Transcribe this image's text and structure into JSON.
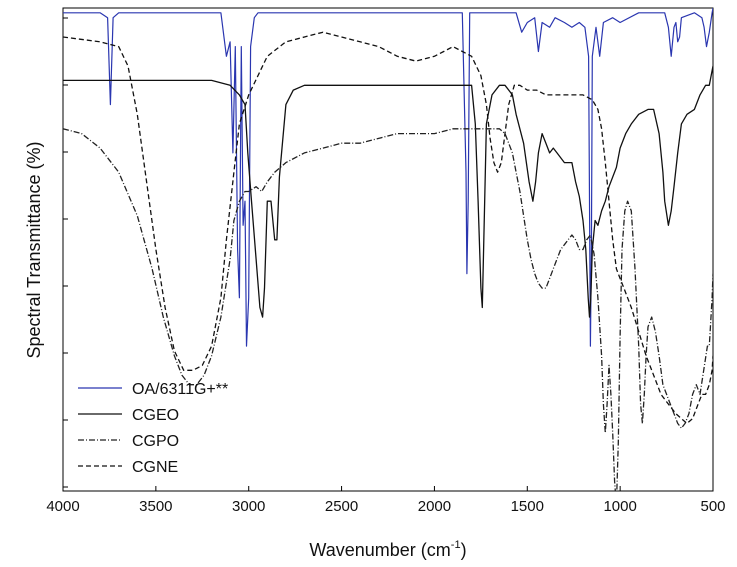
{
  "chart_data": {
    "type": "line",
    "title": "",
    "xlabel": "Wavenumber (cm",
    "xlabel_sup": "-1",
    "xlabel_end": ")",
    "ylabel": "Spectral Transmittance (%)",
    "xlim": [
      4000,
      500
    ],
    "ylim": [
      0,
      100
    ],
    "x_ticks": [
      4000,
      3500,
      3000,
      2500,
      2000,
      1500,
      1000,
      500
    ],
    "legend_position": "lower-left",
    "series": [
      {
        "name": "OA/6311G+**",
        "color": "#2a36b0",
        "dash": "solid",
        "points": [
          [
            4000,
            99
          ],
          [
            3800,
            99
          ],
          [
            3760,
            98
          ],
          [
            3745,
            80
          ],
          [
            3730,
            98
          ],
          [
            3700,
            99
          ],
          [
            3150,
            99
          ],
          [
            3120,
            90
          ],
          [
            3100,
            93
          ],
          [
            3085,
            70
          ],
          [
            3072,
            92
          ],
          [
            3060,
            50
          ],
          [
            3050,
            40
          ],
          [
            3040,
            92
          ],
          [
            3030,
            55
          ],
          [
            3020,
            60
          ],
          [
            3012,
            30
          ],
          [
            3000,
            40
          ],
          [
            2990,
            92
          ],
          [
            2970,
            98
          ],
          [
            2950,
            99
          ],
          [
            1880,
            99
          ],
          [
            1850,
            99
          ],
          [
            1830,
            66
          ],
          [
            1825,
            45
          ],
          [
            1818,
            60
          ],
          [
            1810,
            99
          ],
          [
            1680,
            99
          ],
          [
            1560,
            99
          ],
          [
            1530,
            95
          ],
          [
            1500,
            97
          ],
          [
            1460,
            98
          ],
          [
            1440,
            91
          ],
          [
            1420,
            97
          ],
          [
            1380,
            96
          ],
          [
            1350,
            98
          ],
          [
            1300,
            97
          ],
          [
            1260,
            96
          ],
          [
            1220,
            97
          ],
          [
            1190,
            96
          ],
          [
            1170,
            90
          ],
          [
            1165,
            60
          ],
          [
            1160,
            30
          ],
          [
            1155,
            50
          ],
          [
            1150,
            90
          ],
          [
            1130,
            96
          ],
          [
            1110,
            90
          ],
          [
            1090,
            97
          ],
          [
            1040,
            98
          ],
          [
            1000,
            97
          ],
          [
            900,
            99
          ],
          [
            760,
            99
          ],
          [
            740,
            96
          ],
          [
            725,
            90
          ],
          [
            710,
            96
          ],
          [
            700,
            97
          ],
          [
            690,
            93
          ],
          [
            680,
            94
          ],
          [
            670,
            98
          ],
          [
            600,
            99
          ],
          [
            560,
            98
          ],
          [
            548,
            96
          ],
          [
            535,
            92
          ],
          [
            520,
            95
          ],
          [
            505,
            99
          ],
          [
            500,
            100
          ]
        ]
      },
      {
        "name": "CGEO",
        "color": "#111111",
        "dash": "solid",
        "points": [
          [
            4000,
            85
          ],
          [
            3600,
            85
          ],
          [
            3200,
            85
          ],
          [
            3100,
            84
          ],
          [
            3050,
            82
          ],
          [
            3020,
            80
          ],
          [
            3005,
            70
          ],
          [
            2985,
            60
          ],
          [
            2960,
            48
          ],
          [
            2940,
            38
          ],
          [
            2925,
            36
          ],
          [
            2915,
            42
          ],
          [
            2900,
            60
          ],
          [
            2880,
            60
          ],
          [
            2860,
            52
          ],
          [
            2848,
            52
          ],
          [
            2835,
            65
          ],
          [
            2800,
            80
          ],
          [
            2760,
            83
          ],
          [
            2700,
            84
          ],
          [
            2200,
            84
          ],
          [
            1900,
            84
          ],
          [
            1800,
            84
          ],
          [
            1780,
            76
          ],
          [
            1765,
            60
          ],
          [
            1750,
            42
          ],
          [
            1742,
            38
          ],
          [
            1735,
            50
          ],
          [
            1720,
            76
          ],
          [
            1690,
            82
          ],
          [
            1650,
            84
          ],
          [
            1620,
            84
          ],
          [
            1580,
            82
          ],
          [
            1560,
            78
          ],
          [
            1520,
            72
          ],
          [
            1490,
            64
          ],
          [
            1470,
            60
          ],
          [
            1455,
            64
          ],
          [
            1440,
            70
          ],
          [
            1420,
            74
          ],
          [
            1400,
            72
          ],
          [
            1380,
            70
          ],
          [
            1360,
            71
          ],
          [
            1340,
            70
          ],
          [
            1300,
            68
          ],
          [
            1260,
            68
          ],
          [
            1240,
            64
          ],
          [
            1220,
            61
          ],
          [
            1200,
            56
          ],
          [
            1185,
            50
          ],
          [
            1172,
            40
          ],
          [
            1165,
            36
          ],
          [
            1158,
            40
          ],
          [
            1150,
            50
          ],
          [
            1135,
            56
          ],
          [
            1120,
            55
          ],
          [
            1100,
            58
          ],
          [
            1080,
            60
          ],
          [
            1060,
            63
          ],
          [
            1020,
            67
          ],
          [
            1000,
            71
          ],
          [
            970,
            74
          ],
          [
            940,
            76
          ],
          [
            900,
            78
          ],
          [
            850,
            79
          ],
          [
            820,
            79
          ],
          [
            790,
            74
          ],
          [
            770,
            66
          ],
          [
            760,
            60
          ],
          [
            740,
            55
          ],
          [
            725,
            58
          ],
          [
            710,
            63
          ],
          [
            690,
            70
          ],
          [
            670,
            76
          ],
          [
            640,
            78
          ],
          [
            600,
            79
          ],
          [
            570,
            82
          ],
          [
            540,
            84
          ],
          [
            520,
            84
          ],
          [
            500,
            88
          ]
        ]
      },
      {
        "name": "CGPO",
        "color": "#222222",
        "dash": "dashdot",
        "points": [
          [
            4000,
            75
          ],
          [
            3900,
            74
          ],
          [
            3800,
            71
          ],
          [
            3700,
            66
          ],
          [
            3600,
            57
          ],
          [
            3520,
            46
          ],
          [
            3460,
            36
          ],
          [
            3400,
            28
          ],
          [
            3360,
            24
          ],
          [
            3320,
            22
          ],
          [
            3280,
            22
          ],
          [
            3240,
            24
          ],
          [
            3200,
            28
          ],
          [
            3150,
            36
          ],
          [
            3100,
            48
          ],
          [
            3080,
            56
          ],
          [
            3050,
            60
          ],
          [
            3020,
            62
          ],
          [
            3000,
            62
          ],
          [
            2960,
            63
          ],
          [
            2930,
            62
          ],
          [
            2900,
            64
          ],
          [
            2860,
            66
          ],
          [
            2800,
            68
          ],
          [
            2700,
            70
          ],
          [
            2600,
            71
          ],
          [
            2500,
            72
          ],
          [
            2400,
            72
          ],
          [
            2300,
            73
          ],
          [
            2200,
            74
          ],
          [
            2100,
            74
          ],
          [
            2000,
            74
          ],
          [
            1900,
            75
          ],
          [
            1800,
            75
          ],
          [
            1700,
            75
          ],
          [
            1650,
            75
          ],
          [
            1620,
            74
          ],
          [
            1600,
            72
          ],
          [
            1580,
            70
          ],
          [
            1560,
            66
          ],
          [
            1540,
            62
          ],
          [
            1520,
            57
          ],
          [
            1500,
            52
          ],
          [
            1480,
            48
          ],
          [
            1460,
            45
          ],
          [
            1440,
            43
          ],
          [
            1420,
            42
          ],
          [
            1400,
            42
          ],
          [
            1380,
            44
          ],
          [
            1350,
            47
          ],
          [
            1320,
            50
          ],
          [
            1300,
            51
          ],
          [
            1280,
            52
          ],
          [
            1260,
            53
          ],
          [
            1240,
            52
          ],
          [
            1220,
            50
          ],
          [
            1200,
            50
          ],
          [
            1180,
            52
          ],
          [
            1160,
            53
          ],
          [
            1140,
            49
          ],
          [
            1120,
            40
          ],
          [
            1100,
            28
          ],
          [
            1090,
            18
          ],
          [
            1080,
            12
          ],
          [
            1070,
            18
          ],
          [
            1060,
            26
          ],
          [
            1050,
            20
          ],
          [
            1040,
            12
          ],
          [
            1030,
            2
          ],
          [
            1020,
            -3
          ],
          [
            1010,
            10
          ],
          [
            1000,
            32
          ],
          [
            990,
            50
          ],
          [
            975,
            58
          ],
          [
            960,
            60
          ],
          [
            940,
            58
          ],
          [
            920,
            46
          ],
          [
            900,
            30
          ],
          [
            890,
            18
          ],
          [
            880,
            14
          ],
          [
            870,
            20
          ],
          [
            860,
            28
          ],
          [
            850,
            34
          ],
          [
            830,
            36
          ],
          [
            810,
            33
          ],
          [
            790,
            28
          ],
          [
            770,
            22
          ],
          [
            750,
            20
          ],
          [
            730,
            18
          ],
          [
            710,
            16
          ],
          [
            690,
            14
          ],
          [
            670,
            13
          ],
          [
            650,
            14
          ],
          [
            630,
            16
          ],
          [
            610,
            20
          ],
          [
            590,
            22
          ],
          [
            570,
            20
          ],
          [
            550,
            25
          ],
          [
            530,
            30
          ],
          [
            520,
            30
          ],
          [
            505,
            40
          ],
          [
            500,
            45
          ]
        ]
      },
      {
        "name": "CGNE",
        "color": "#111111",
        "dash": "dashed",
        "points": [
          [
            4000,
            94
          ],
          [
            3800,
            93
          ],
          [
            3700,
            92
          ],
          [
            3650,
            88
          ],
          [
            3600,
            78
          ],
          [
            3550,
            64
          ],
          [
            3500,
            50
          ],
          [
            3450,
            38
          ],
          [
            3400,
            29
          ],
          [
            3350,
            25
          ],
          [
            3300,
            25
          ],
          [
            3250,
            26
          ],
          [
            3200,
            30
          ],
          [
            3150,
            40
          ],
          [
            3120,
            52
          ],
          [
            3080,
            66
          ],
          [
            3050,
            76
          ],
          [
            3000,
            82
          ],
          [
            2950,
            86
          ],
          [
            2900,
            90
          ],
          [
            2800,
            93
          ],
          [
            2700,
            94
          ],
          [
            2600,
            95
          ],
          [
            2500,
            94
          ],
          [
            2400,
            93
          ],
          [
            2300,
            92
          ],
          [
            2200,
            90
          ],
          [
            2100,
            89
          ],
          [
            2000,
            90
          ],
          [
            1950,
            91
          ],
          [
            1900,
            92
          ],
          [
            1800,
            90
          ],
          [
            1750,
            86
          ],
          [
            1720,
            80
          ],
          [
            1700,
            73
          ],
          [
            1680,
            68
          ],
          [
            1660,
            66
          ],
          [
            1640,
            68
          ],
          [
            1620,
            74
          ],
          [
            1600,
            80
          ],
          [
            1570,
            84
          ],
          [
            1540,
            84
          ],
          [
            1500,
            83
          ],
          [
            1450,
            83
          ],
          [
            1400,
            82
          ],
          [
            1300,
            82
          ],
          [
            1250,
            82
          ],
          [
            1200,
            82
          ],
          [
            1150,
            81
          ],
          [
            1120,
            79
          ],
          [
            1100,
            75
          ],
          [
            1080,
            68
          ],
          [
            1060,
            60
          ],
          [
            1040,
            52
          ],
          [
            1020,
            46
          ],
          [
            1000,
            44
          ],
          [
            980,
            42
          ],
          [
            960,
            40
          ],
          [
            940,
            38
          ],
          [
            900,
            33
          ],
          [
            860,
            28
          ],
          [
            820,
            24
          ],
          [
            780,
            20
          ],
          [
            740,
            18
          ],
          [
            700,
            16
          ],
          [
            670,
            15
          ],
          [
            640,
            14
          ],
          [
            610,
            15
          ],
          [
            580,
            18
          ],
          [
            560,
            20
          ],
          [
            540,
            20
          ],
          [
            520,
            22
          ],
          [
            505,
            25
          ],
          [
            500,
            28
          ]
        ]
      }
    ]
  }
}
